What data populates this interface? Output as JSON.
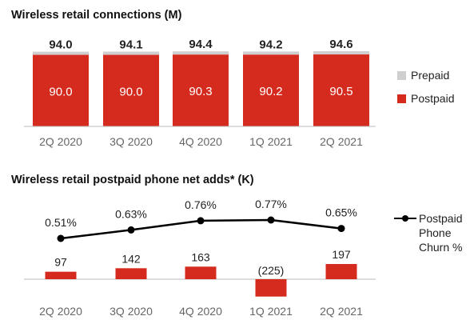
{
  "chart_data": [
    {
      "type": "bar",
      "stacked": true,
      "title": "Wireless retail connections (M)",
      "categories": [
        "2Q 2020",
        "3Q 2020",
        "4Q 2020",
        "1Q 2021",
        "2Q 2021"
      ],
      "totals": [
        94.0,
        94.1,
        94.4,
        94.2,
        94.6
      ],
      "total_labels": [
        "94.0",
        "94.1",
        "94.4",
        "94.2",
        "94.6"
      ],
      "series": [
        {
          "name": "Postpaid",
          "values": [
            90.0,
            90.0,
            90.3,
            90.2,
            90.5
          ],
          "labels": [
            "90.0",
            "90.0",
            "90.3",
            "90.2",
            "90.5"
          ],
          "color": "#d52b1e"
        },
        {
          "name": "Prepaid",
          "values": [
            4.0,
            4.1,
            4.1,
            4.0,
            4.1
          ],
          "color": "#cfcfcf"
        }
      ],
      "legend": [
        "Prepaid",
        "Postpaid"
      ],
      "legend_position": "right",
      "grid": false
    },
    {
      "type": "bar+line",
      "title": "Wireless retail postpaid phone net adds* (K)",
      "categories": [
        "2Q 2020",
        "3Q 2020",
        "4Q 2020",
        "1Q 2021",
        "2Q 2021"
      ],
      "bar_series": {
        "name": "",
        "values": [
          97,
          142,
          163,
          -225,
          197
        ],
        "labels": [
          "97",
          "142",
          "163",
          "(225)",
          "197"
        ],
        "color": "#d52b1e"
      },
      "line_series": {
        "name": "Postpaid Phone Churn %",
        "name_lines": [
          "Postpaid",
          "Phone",
          "Churn %"
        ],
        "values": [
          0.51,
          0.63,
          0.76,
          0.77,
          0.65
        ],
        "labels": [
          "0.51%",
          "0.63%",
          "0.76%",
          "0.77%",
          "0.65%"
        ],
        "color": "#000000"
      },
      "legend_position": "right",
      "grid": false
    }
  ]
}
